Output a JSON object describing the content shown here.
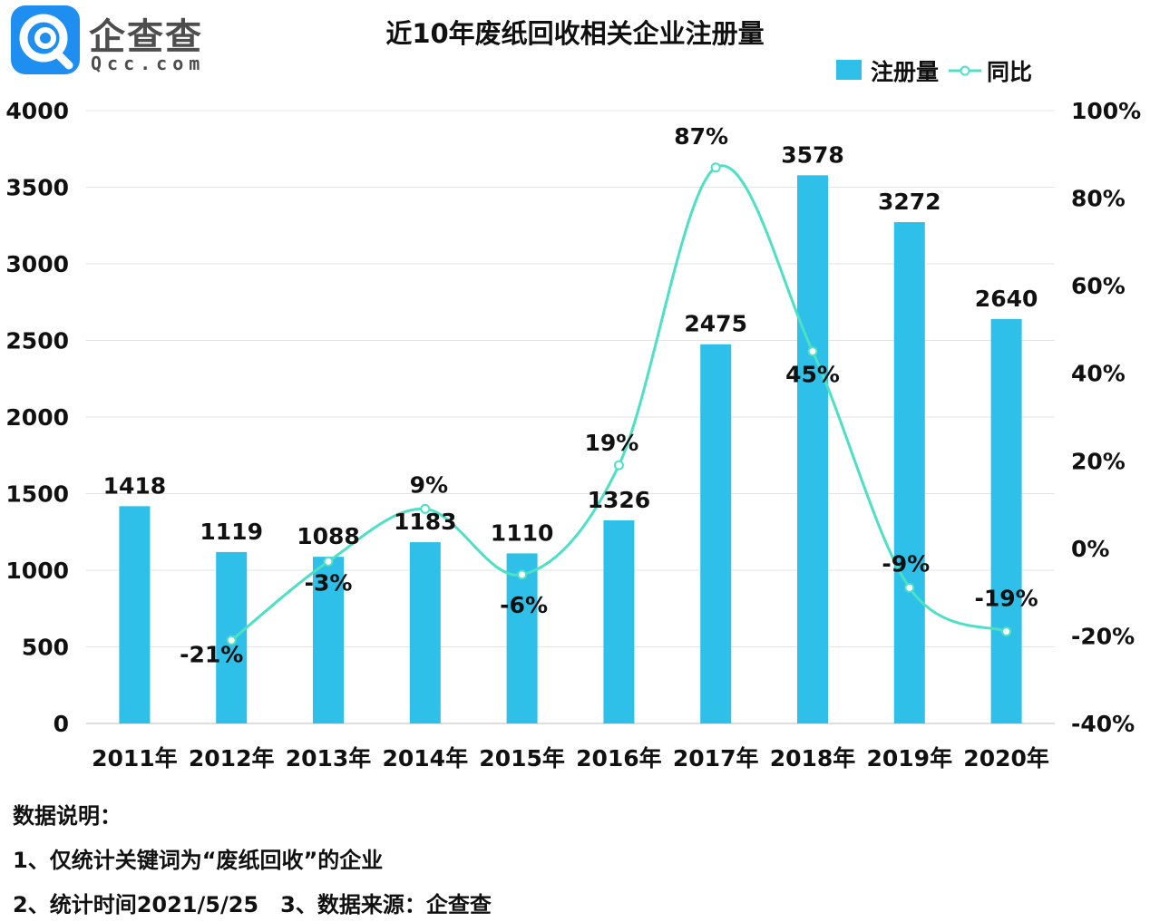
{
  "logo": {
    "brand": "企查查",
    "domain": "Qcc.com"
  },
  "chart_data": {
    "type": "bar",
    "title": "近10年废纸回收相关企业注册量",
    "categories": [
      "2011年",
      "2012年",
      "2013年",
      "2014年",
      "2015年",
      "2016年",
      "2017年",
      "2018年",
      "2019年",
      "2020年"
    ],
    "series": [
      {
        "name": "注册量",
        "type": "bar",
        "axis": "left",
        "color": "#2ec0e8",
        "values": [
          1418,
          1119,
          1088,
          1183,
          1110,
          1326,
          2475,
          3578,
          3272,
          2640
        ],
        "labels": [
          "1418",
          "1119",
          "1088",
          "1183",
          "1110",
          "1326",
          "2475",
          "3578",
          "3272",
          "2640"
        ]
      },
      {
        "name": "同比",
        "type": "line",
        "axis": "right",
        "color": "#4de0c4",
        "values": [
          null,
          -21,
          -3,
          9,
          -6,
          19,
          87,
          45,
          -9,
          -19
        ],
        "labels": [
          "",
          "-21%",
          "-3%",
          "9%",
          "-6%",
          "19%",
          "87%",
          "45%",
          "-9%",
          "-19%"
        ]
      }
    ],
    "y_left": {
      "min": 0,
      "max": 4000,
      "step": 500,
      "ticks": [
        "0",
        "500",
        "1000",
        "1500",
        "2000",
        "2500",
        "3000",
        "3500",
        "4000"
      ]
    },
    "y_right": {
      "min": -40,
      "max": 100,
      "step": 20,
      "ticks": [
        "-40%",
        "-20%",
        "0%",
        "20%",
        "40%",
        "60%",
        "80%",
        "100%"
      ]
    },
    "grid": true,
    "legend_position": "top-right"
  },
  "notes": {
    "heading": "数据说明：",
    "line1": "1、仅统计关键词为“废纸回收”的企业",
    "line2": "2、统计时间2021/5/25　3、数据来源：企查查"
  }
}
